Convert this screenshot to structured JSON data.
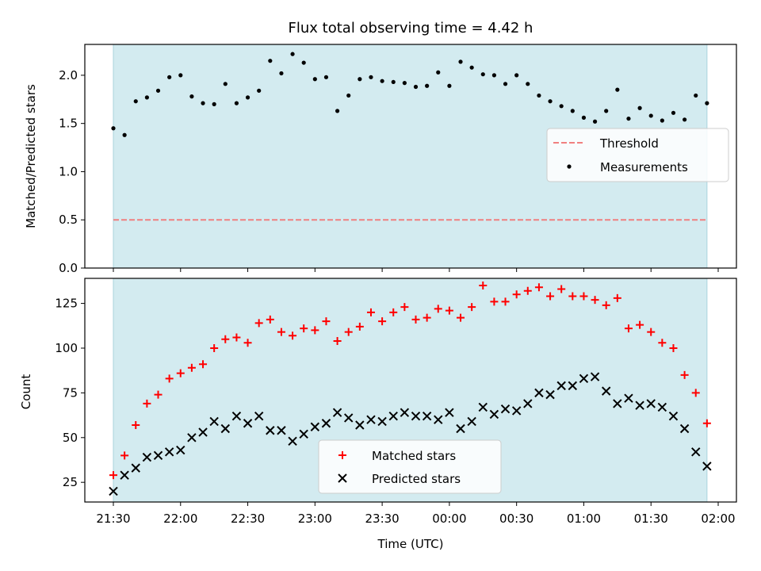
{
  "chart_data": [
    {
      "type": "scatter",
      "title": "Flux total observing time = 4.42 h",
      "xlabel": "",
      "ylabel": "Matched/Predicted stars",
      "ylim": [
        0,
        2.32
      ],
      "yticks": [
        "0.0",
        "0.5",
        "1.0",
        "1.5",
        "2.0"
      ],
      "ytick_values": [
        0.0,
        0.5,
        1.0,
        1.5,
        2.0
      ],
      "observing_window": [
        "21:30",
        "01:55"
      ],
      "legend_position": "center-right",
      "threshold": {
        "name": "Threshold",
        "value": 0.5,
        "color": "#f08080",
        "style": "dashed"
      },
      "series": [
        {
          "name": "Measurements",
          "color": "#000000",
          "marker": "dot",
          "x": [
            "21:30",
            "21:35",
            "21:40",
            "21:45",
            "21:50",
            "21:55",
            "22:00",
            "22:05",
            "22:10",
            "22:15",
            "22:20",
            "22:25",
            "22:30",
            "22:35",
            "22:40",
            "22:45",
            "22:50",
            "22:55",
            "23:00",
            "23:05",
            "23:10",
            "23:15",
            "23:20",
            "23:25",
            "23:30",
            "23:35",
            "23:40",
            "23:45",
            "23:50",
            "23:55",
            "00:00",
            "00:05",
            "00:10",
            "00:15",
            "00:20",
            "00:25",
            "00:30",
            "00:35",
            "00:40",
            "00:45",
            "00:50",
            "00:55",
            "01:00",
            "01:05",
            "01:10",
            "01:15",
            "01:20",
            "01:25",
            "01:30",
            "01:35",
            "01:40",
            "01:45",
            "01:50",
            "01:55"
          ],
          "y": [
            1.45,
            1.38,
            1.73,
            1.77,
            1.84,
            1.98,
            2.0,
            1.78,
            1.71,
            1.7,
            1.91,
            1.71,
            1.77,
            1.84,
            2.15,
            2.02,
            2.22,
            2.13,
            1.96,
            1.98,
            1.63,
            1.79,
            1.96,
            1.98,
            1.94,
            1.93,
            1.92,
            1.88,
            1.89,
            2.03,
            1.89,
            2.14,
            2.08,
            2.01,
            2.0,
            1.91,
            2.0,
            1.91,
            1.79,
            1.73,
            1.68,
            1.63,
            1.56,
            1.52,
            1.63,
            1.85,
            1.55,
            1.66,
            1.58,
            1.53,
            1.61,
            1.54,
            1.79,
            1.71
          ]
        }
      ]
    },
    {
      "type": "scatter",
      "title": "",
      "xlabel": "Time (UTC)",
      "ylabel": "Count",
      "ylim": [
        14,
        139
      ],
      "yticks": [
        "25",
        "50",
        "75",
        "100",
        "125"
      ],
      "ytick_values": [
        25,
        50,
        75,
        100,
        125
      ],
      "xticks": [
        "21:30",
        "22:00",
        "22:30",
        "23:00",
        "23:30",
        "00:00",
        "00:30",
        "01:00",
        "01:30",
        "02:00"
      ],
      "observing_window": [
        "21:30",
        "01:55"
      ],
      "legend_position": "lower-center",
      "series": [
        {
          "name": "Matched stars",
          "color": "#ff0000",
          "marker": "plus",
          "x": [
            "21:30",
            "21:35",
            "21:40",
            "21:45",
            "21:50",
            "21:55",
            "22:00",
            "22:05",
            "22:10",
            "22:15",
            "22:20",
            "22:25",
            "22:30",
            "22:35",
            "22:40",
            "22:45",
            "22:50",
            "22:55",
            "23:00",
            "23:05",
            "23:10",
            "23:15",
            "23:20",
            "23:25",
            "23:30",
            "23:35",
            "23:40",
            "23:45",
            "23:50",
            "23:55",
            "00:00",
            "00:05",
            "00:10",
            "00:15",
            "00:20",
            "00:25",
            "00:30",
            "00:35",
            "00:40",
            "00:45",
            "00:50",
            "00:55",
            "01:00",
            "01:05",
            "01:10",
            "01:15",
            "01:20",
            "01:25",
            "01:30",
            "01:35",
            "01:40",
            "01:45",
            "01:50",
            "01:55"
          ],
          "y": [
            29,
            40,
            57,
            69,
            74,
            83,
            86,
            89,
            91,
            100,
            105,
            106,
            103,
            114,
            116,
            109,
            107,
            111,
            110,
            115,
            104,
            109,
            112,
            120,
            115,
            120,
            123,
            116,
            117,
            122,
            121,
            117,
            123,
            135,
            126,
            126,
            130,
            132,
            134,
            129,
            133,
            129,
            129,
            127,
            124,
            128,
            111,
            113,
            109,
            103,
            100,
            85,
            75,
            58
          ]
        },
        {
          "name": "Predicted stars",
          "color": "#000000",
          "marker": "x",
          "x": [
            "21:30",
            "21:35",
            "21:40",
            "21:45",
            "21:50",
            "21:55",
            "22:00",
            "22:05",
            "22:10",
            "22:15",
            "22:20",
            "22:25",
            "22:30",
            "22:35",
            "22:40",
            "22:45",
            "22:50",
            "22:55",
            "23:00",
            "23:05",
            "23:10",
            "23:15",
            "23:20",
            "23:25",
            "23:30",
            "23:35",
            "23:40",
            "23:45",
            "23:50",
            "23:55",
            "00:00",
            "00:05",
            "00:10",
            "00:15",
            "00:20",
            "00:25",
            "00:30",
            "00:35",
            "00:40",
            "00:45",
            "00:50",
            "00:55",
            "01:00",
            "01:05",
            "01:10",
            "01:15",
            "01:20",
            "01:25",
            "01:30",
            "01:35",
            "01:40",
            "01:45",
            "01:50",
            "01:55"
          ],
          "y": [
            20,
            29,
            33,
            39,
            40,
            42,
            43,
            50,
            53,
            59,
            55,
            62,
            58,
            62,
            54,
            54,
            48,
            52,
            56,
            58,
            64,
            61,
            57,
            60,
            59,
            62,
            64,
            62,
            62,
            60,
            64,
            55,
            59,
            67,
            63,
            66,
            65,
            69,
            75,
            74,
            79,
            79,
            83,
            84,
            76,
            69,
            72,
            68,
            69,
            67,
            62,
            55,
            42,
            34
          ]
        }
      ]
    }
  ],
  "colors": {
    "shade": "#d3ebf0",
    "shade_edge": "#a9d3dc"
  }
}
